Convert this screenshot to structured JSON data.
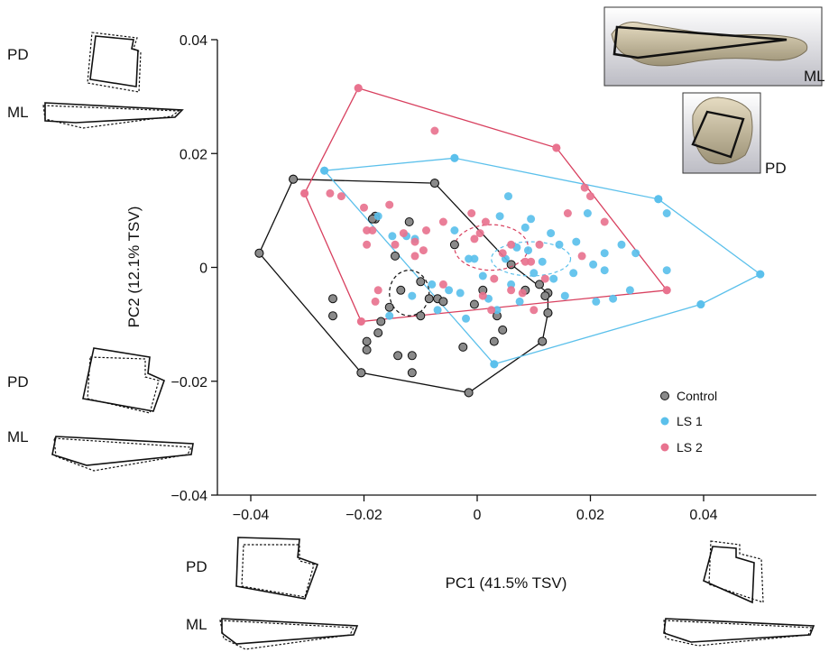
{
  "chart_data": {
    "type": "scatter",
    "xlabel": "PC1 (41.5% TSV)",
    "ylabel": "PC2 (12.1% TSV)",
    "xlim": [
      -0.044,
      0.057
    ],
    "ylim": [
      -0.04,
      0.04
    ],
    "xticks": [
      -0.04,
      -0.02,
      0,
      0.02,
      0.04
    ],
    "yticks": [
      -0.04,
      -0.02,
      0,
      0.02,
      0.04
    ],
    "xtick_labels": [
      "−0.04",
      "−0.02",
      "0",
      "0.02",
      "0.04"
    ],
    "ytick_labels": [
      "−0.04",
      "−0.02",
      "0",
      "0.02",
      "0.04"
    ],
    "legend": {
      "placement": "lower-right",
      "entries": [
        "Control",
        "LS 1",
        "LS 2"
      ]
    },
    "series": [
      {
        "name": "Control",
        "color": "#8a8a8a",
        "points": [
          [
            -0.0385,
            0.0025
          ],
          [
            -0.0325,
            0.0155
          ],
          [
            -0.0255,
            -0.0055
          ],
          [
            -0.0255,
            -0.0085
          ],
          [
            -0.0205,
            -0.0185
          ],
          [
            -0.0195,
            -0.0145
          ],
          [
            -0.0195,
            -0.013
          ],
          [
            -0.018,
            0.009
          ],
          [
            -0.018,
            0.0085
          ],
          [
            -0.0185,
            0.0085
          ],
          [
            -0.017,
            -0.0095
          ],
          [
            -0.0175,
            -0.0115
          ],
          [
            -0.0155,
            -0.007
          ],
          [
            -0.0145,
            0.002
          ],
          [
            -0.0135,
            -0.004
          ],
          [
            -0.014,
            -0.0155
          ],
          [
            -0.012,
            0.008
          ],
          [
            -0.0115,
            -0.0185
          ],
          [
            -0.0115,
            -0.0155
          ],
          [
            -0.01,
            -0.0025
          ],
          [
            -0.0085,
            -0.0055
          ],
          [
            -0.0075,
            0.0148
          ],
          [
            -0.007,
            -0.0055
          ],
          [
            -0.006,
            -0.006
          ],
          [
            -0.01,
            -0.0085
          ],
          [
            -0.004,
            0.004
          ],
          [
            -0.0015,
            -0.022
          ],
          [
            -0.0025,
            -0.014
          ],
          [
            -0.0005,
            -0.0065
          ],
          [
            0.001,
            -0.004
          ],
          [
            0.003,
            -0.013
          ],
          [
            0.0035,
            -0.0085
          ],
          [
            0.0045,
            -0.011
          ],
          [
            0.0085,
            -0.004
          ],
          [
            0.011,
            -0.003
          ],
          [
            0.0115,
            -0.013
          ],
          [
            0.0125,
            -0.008
          ],
          [
            0.012,
            -0.005
          ]
        ],
        "hull": [
          [
            -0.0385,
            0.0025
          ],
          [
            -0.0325,
            0.0155
          ],
          [
            -0.0075,
            0.0148
          ],
          [
            0.006,
            0.0005
          ],
          [
            0.0125,
            -0.0045
          ],
          [
            0.0125,
            -0.008
          ],
          [
            0.0115,
            -0.013
          ],
          [
            -0.0015,
            -0.022
          ],
          [
            -0.0205,
            -0.0185
          ]
        ],
        "ellipse": {
          "center": [
            -0.012,
            -0.0045
          ],
          "radii": [
            0.0035,
            0.004
          ]
        }
      },
      {
        "name": "LS 1",
        "color": "#5bc0eb",
        "points": [
          [
            -0.027,
            0.017
          ],
          [
            -0.0175,
            0.009
          ],
          [
            -0.0155,
            -0.0085
          ],
          [
            -0.015,
            0.0055
          ],
          [
            -0.011,
            0.005
          ],
          [
            -0.0125,
            0.0055
          ],
          [
            -0.0115,
            -0.005
          ],
          [
            -0.008,
            -0.003
          ],
          [
            -0.007,
            -0.0075
          ],
          [
            -0.005,
            -0.004
          ],
          [
            -0.004,
            0.0065
          ],
          [
            -0.003,
            -0.0045
          ],
          [
            -0.002,
            -0.009
          ],
          [
            -0.0015,
            0.0015
          ],
          [
            -0.0005,
            0.0015
          ],
          [
            -0.004,
            0.0192
          ],
          [
            0.001,
            -0.0015
          ],
          [
            0.002,
            -0.0055
          ],
          [
            0.003,
            -0.017
          ],
          [
            0.0035,
            -0.0075
          ],
          [
            0.004,
            0.009
          ],
          [
            0.005,
            0.0015
          ],
          [
            0.0055,
            0.0125
          ],
          [
            0.006,
            -0.003
          ],
          [
            0.007,
            0.0035
          ],
          [
            0.0075,
            -0.006
          ],
          [
            0.0085,
            0.007
          ],
          [
            0.009,
            0.003
          ],
          [
            0.0095,
            0.0085
          ],
          [
            0.01,
            -0.001
          ],
          [
            0.0115,
            0.001
          ],
          [
            0.013,
            0.006
          ],
          [
            0.0135,
            -0.002
          ],
          [
            0.0145,
            0.004
          ],
          [
            0.0155,
            -0.005
          ],
          [
            0.017,
            -0.001
          ],
          [
            0.0175,
            0.0045
          ],
          [
            0.0195,
            0.0095
          ],
          [
            0.0205,
            0.0005
          ],
          [
            0.021,
            -0.006
          ],
          [
            0.0225,
            0.0025
          ],
          [
            0.0225,
            -0.0005
          ],
          [
            0.024,
            -0.0055
          ],
          [
            0.0255,
            0.004
          ],
          [
            0.028,
            0.0025
          ],
          [
            0.027,
            -0.004
          ],
          [
            0.032,
            0.012
          ],
          [
            0.0335,
            0.0095
          ],
          [
            0.0335,
            -0.0005
          ],
          [
            0.0395,
            -0.0065
          ],
          [
            0.05,
            -0.0012
          ]
        ],
        "hull": [
          [
            -0.027,
            0.017
          ],
          [
            -0.004,
            0.0192
          ],
          [
            0.032,
            0.012
          ],
          [
            0.05,
            -0.0012
          ],
          [
            0.0395,
            -0.0065
          ],
          [
            0.003,
            -0.017
          ]
        ],
        "ellipse": {
          "center": [
            0.0095,
            0.0015
          ],
          "radii": [
            0.007,
            0.003
          ]
        }
      },
      {
        "name": "LS 2",
        "color": "#e8738f",
        "points": [
          [
            -0.0305,
            0.013
          ],
          [
            -0.026,
            0.013
          ],
          [
            -0.024,
            0.0125
          ],
          [
            -0.021,
            0.0315
          ],
          [
            -0.0205,
            -0.0095
          ],
          [
            -0.02,
            0.0105
          ],
          [
            -0.0195,
            0.0065
          ],
          [
            -0.0185,
            0.0065
          ],
          [
            -0.0195,
            0.004
          ],
          [
            -0.018,
            -0.006
          ],
          [
            -0.0175,
            -0.004
          ],
          [
            -0.0155,
            0.011
          ],
          [
            -0.0145,
            0.004
          ],
          [
            -0.013,
            0.006
          ],
          [
            -0.011,
            0.0045
          ],
          [
            -0.009,
            0.0065
          ],
          [
            -0.011,
            0.002
          ],
          [
            -0.0095,
            0.003
          ],
          [
            -0.0075,
            0.024
          ],
          [
            -0.006,
            0.008
          ],
          [
            -0.006,
            -0.003
          ],
          [
            -0.001,
            0.0095
          ],
          [
            -0.0005,
            0.005
          ],
          [
            0.0005,
            0.006
          ],
          [
            0.001,
            -0.005
          ],
          [
            0.0015,
            0.008
          ],
          [
            0.0025,
            -0.0075
          ],
          [
            0.003,
            -0.002
          ],
          [
            0.0045,
            0.0025
          ],
          [
            0.006,
            0.004
          ],
          [
            0.006,
            -0.004
          ],
          [
            0.008,
            -0.0045
          ],
          [
            0.0085,
            0.001
          ],
          [
            0.0095,
            0.001
          ],
          [
            0.01,
            -0.0075
          ],
          [
            0.011,
            0.004
          ],
          [
            0.012,
            -0.002
          ],
          [
            0.014,
            0.021
          ],
          [
            0.016,
            0.0095
          ],
          [
            0.0185,
            0.002
          ],
          [
            0.019,
            0.014
          ],
          [
            0.02,
            0.0125
          ],
          [
            0.0225,
            0.008
          ],
          [
            0.0335,
            -0.004
          ]
        ],
        "hull": [
          [
            -0.021,
            0.0315
          ],
          [
            0.014,
            0.021
          ],
          [
            0.0335,
            -0.004
          ],
          [
            -0.0205,
            -0.0095
          ],
          [
            -0.0305,
            0.013
          ]
        ],
        "ellipse": {
          "center": [
            0.0025,
            0.0035
          ],
          "radii": [
            0.0065,
            0.004
          ]
        }
      }
    ],
    "inset_labels": {
      "inset_top": "ML",
      "inset_bottom": "PD",
      "left_top_pd": "PD",
      "left_top_ml": "ML",
      "left_bottom_pd": "PD",
      "left_bottom_ml": "ML",
      "bottom_left_pd": "PD",
      "bottom_left_ml": "ML"
    }
  }
}
